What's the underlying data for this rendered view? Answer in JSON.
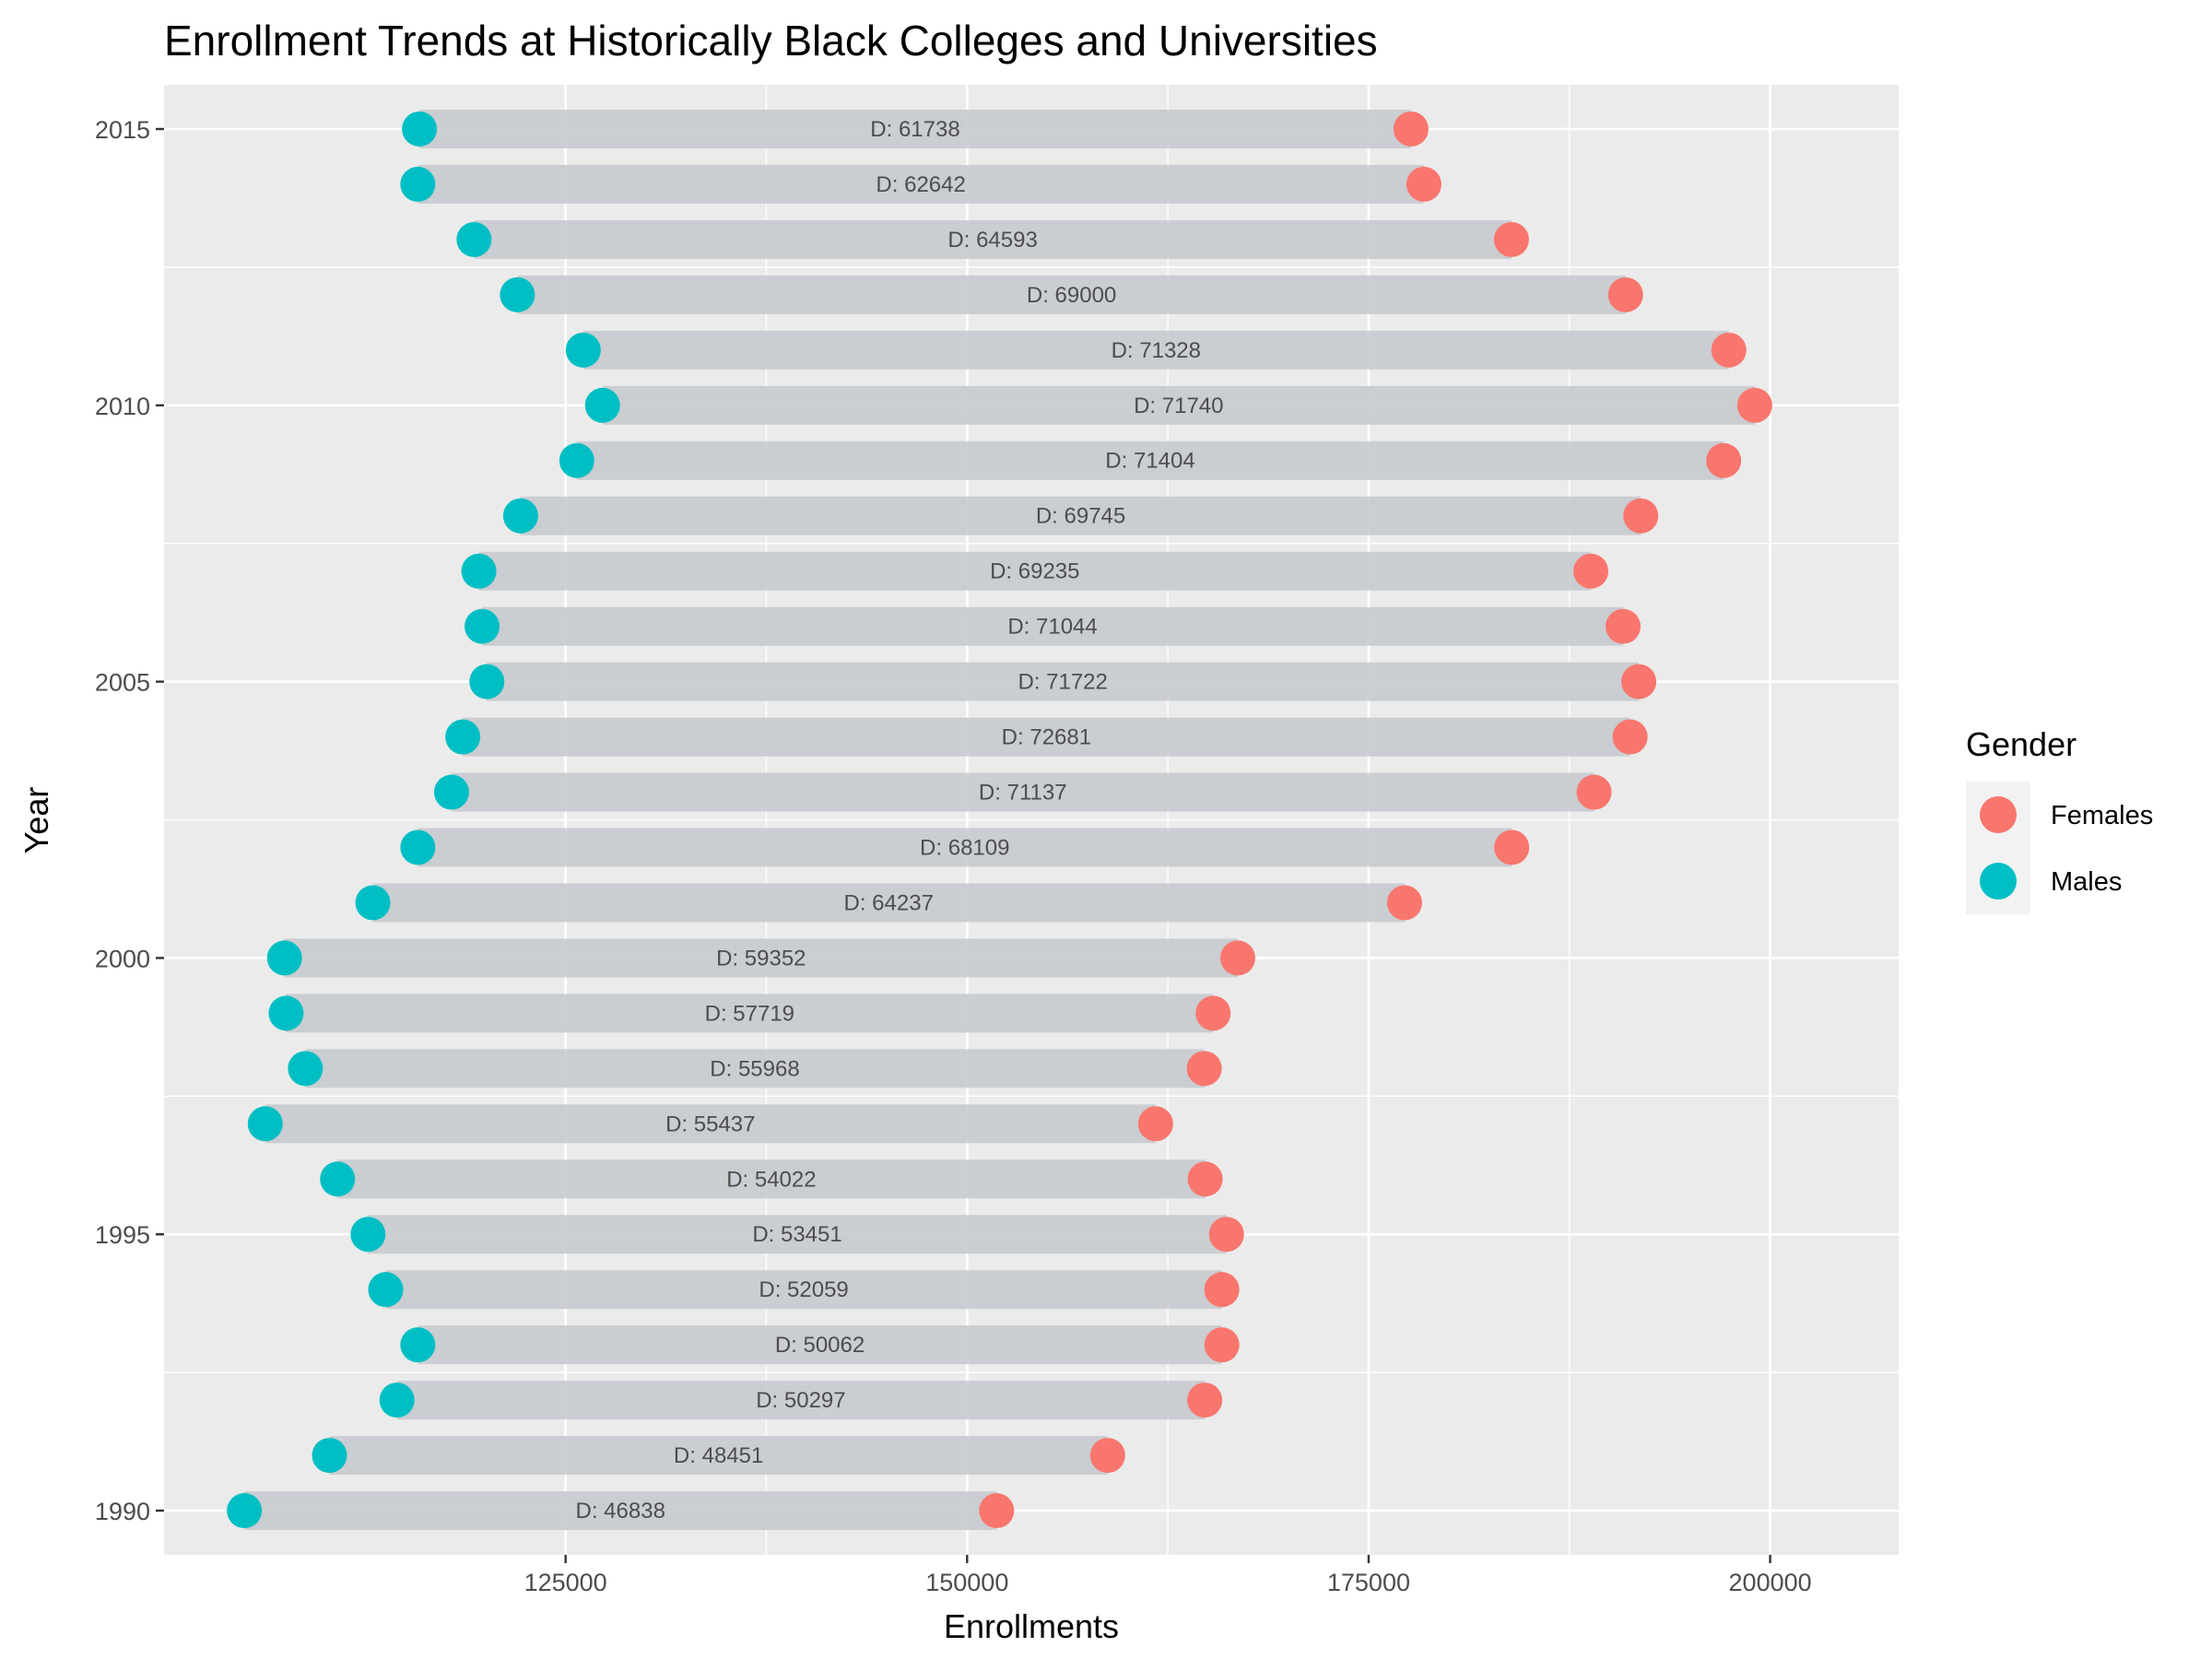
{
  "chart_data": {
    "type": "dumbbell",
    "title": "Enrollment Trends at Historically Black Colleges and Universities",
    "xlabel": "Enrollments",
    "ylabel": "Year",
    "xlim": [
      100000,
      208000
    ],
    "ylim": [
      1989.2,
      2015.8
    ],
    "x_ticks": [
      125000,
      150000,
      175000,
      200000
    ],
    "x_tick_labels": [
      "125000",
      "150000",
      "175000",
      "200000"
    ],
    "y_ticks": [
      1990,
      1995,
      2000,
      2005,
      2010,
      2015
    ],
    "y_tick_labels": [
      "1990",
      "1995",
      "2000",
      "2005",
      "2010",
      "2015"
    ],
    "legend": {
      "title": "Gender",
      "position": "right",
      "entries": [
        {
          "label": "Females",
          "color": "#F8766D"
        },
        {
          "label": "Males",
          "color": "#00BFC4"
        }
      ]
    },
    "label_prefix": "D: ",
    "colors": {
      "panel": "#EBEBEB",
      "grid": "#FFFFFF",
      "bar": "#C6CACE",
      "females": "#F8766D",
      "males": "#00BFC4"
    },
    "years": [
      1990,
      1991,
      1992,
      1993,
      1994,
      1995,
      1996,
      1997,
      1998,
      1999,
      2000,
      2001,
      2002,
      2003,
      2004,
      2005,
      2006,
      2007,
      2008,
      2009,
      2010,
      2011,
      2012,
      2013,
      2014,
      2015
    ],
    "series": [
      {
        "name": "Males",
        "values": [
          105000,
          110300,
          114500,
          115800,
          113800,
          112700,
          110800,
          106300,
          108800,
          107600,
          107500,
          113000,
          115800,
          117900,
          118600,
          120100,
          119800,
          119600,
          122200,
          125700,
          127300,
          126100,
          122000,
          119300,
          115800,
          115900
        ]
      },
      {
        "name": "Females",
        "values": [
          151838,
          158751,
          164797,
          165862,
          165859,
          166151,
          164822,
          161737,
          164768,
          165319,
          166852,
          177237,
          183909,
          189037,
          191281,
          191822,
          190844,
          188835,
          191945,
          197104,
          199040,
          197428,
          191000,
          183893,
          178442,
          177638
        ]
      }
    ],
    "differences": [
      46838,
      48451,
      50297,
      50062,
      52059,
      53451,
      54022,
      55437,
      55968,
      57719,
      59352,
      64237,
      68109,
      71137,
      72681,
      71722,
      71044,
      69235,
      69745,
      71404,
      71740,
      71328,
      69000,
      64593,
      62642,
      61738
    ]
  }
}
